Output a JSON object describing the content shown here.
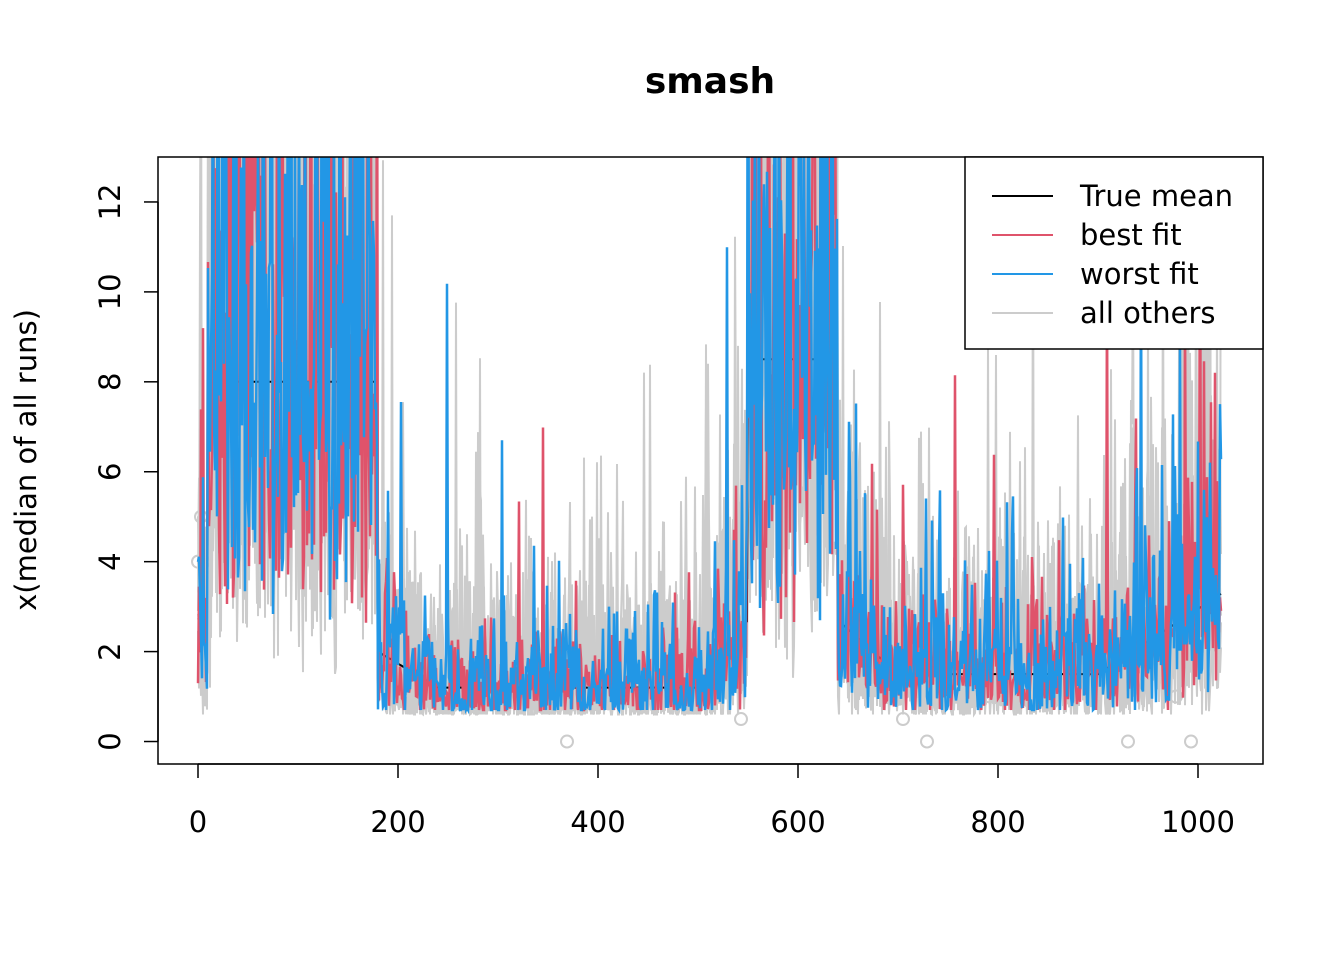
{
  "chart_data": {
    "type": "line",
    "title": "smash",
    "xlabel": "",
    "ylabel": "x(median of all runs)",
    "xlim": [
      -40,
      1065
    ],
    "ylim": [
      -0.5,
      13
    ],
    "x_ticks": [
      0,
      200,
      400,
      600,
      800,
      1000
    ],
    "y_ticks": [
      0,
      2,
      4,
      6,
      8,
      10,
      12
    ],
    "x_tick_labels": [
      "0",
      "200",
      "400",
      "600",
      "800",
      "1000"
    ],
    "y_tick_labels": [
      "0",
      "2",
      "4",
      "6",
      "8",
      "10",
      "12"
    ],
    "n_points": 1024,
    "legend_position": "top-right",
    "series": [
      {
        "name": "True mean",
        "color": "#000000",
        "role": "mean"
      },
      {
        "name": "best fit",
        "color": "#DF536B",
        "role": "best"
      },
      {
        "name": "worst fit",
        "color": "#2297E6",
        "role": "worst"
      },
      {
        "name": "all others",
        "color": "#CCCCCC",
        "role": "others"
      }
    ],
    "intensity_profile": {
      "segments": [
        {
          "x_start": 0,
          "x_end": 10,
          "level": 2.5
        },
        {
          "x_start": 10,
          "x_end": 180,
          "level": 8.0
        },
        {
          "x_start": 180,
          "x_end": 550,
          "level": 1.2
        },
        {
          "x_start": 550,
          "x_end": 640,
          "level": 8.5
        },
        {
          "x_start": 640,
          "x_end": 1024,
          "level": 1.5
        }
      ]
    },
    "points_observed": {
      "y_values": [
        0,
        0.5,
        1,
        1.5,
        2,
        2.5,
        3,
        4,
        5
      ],
      "color": "#CCCCCC"
    }
  }
}
